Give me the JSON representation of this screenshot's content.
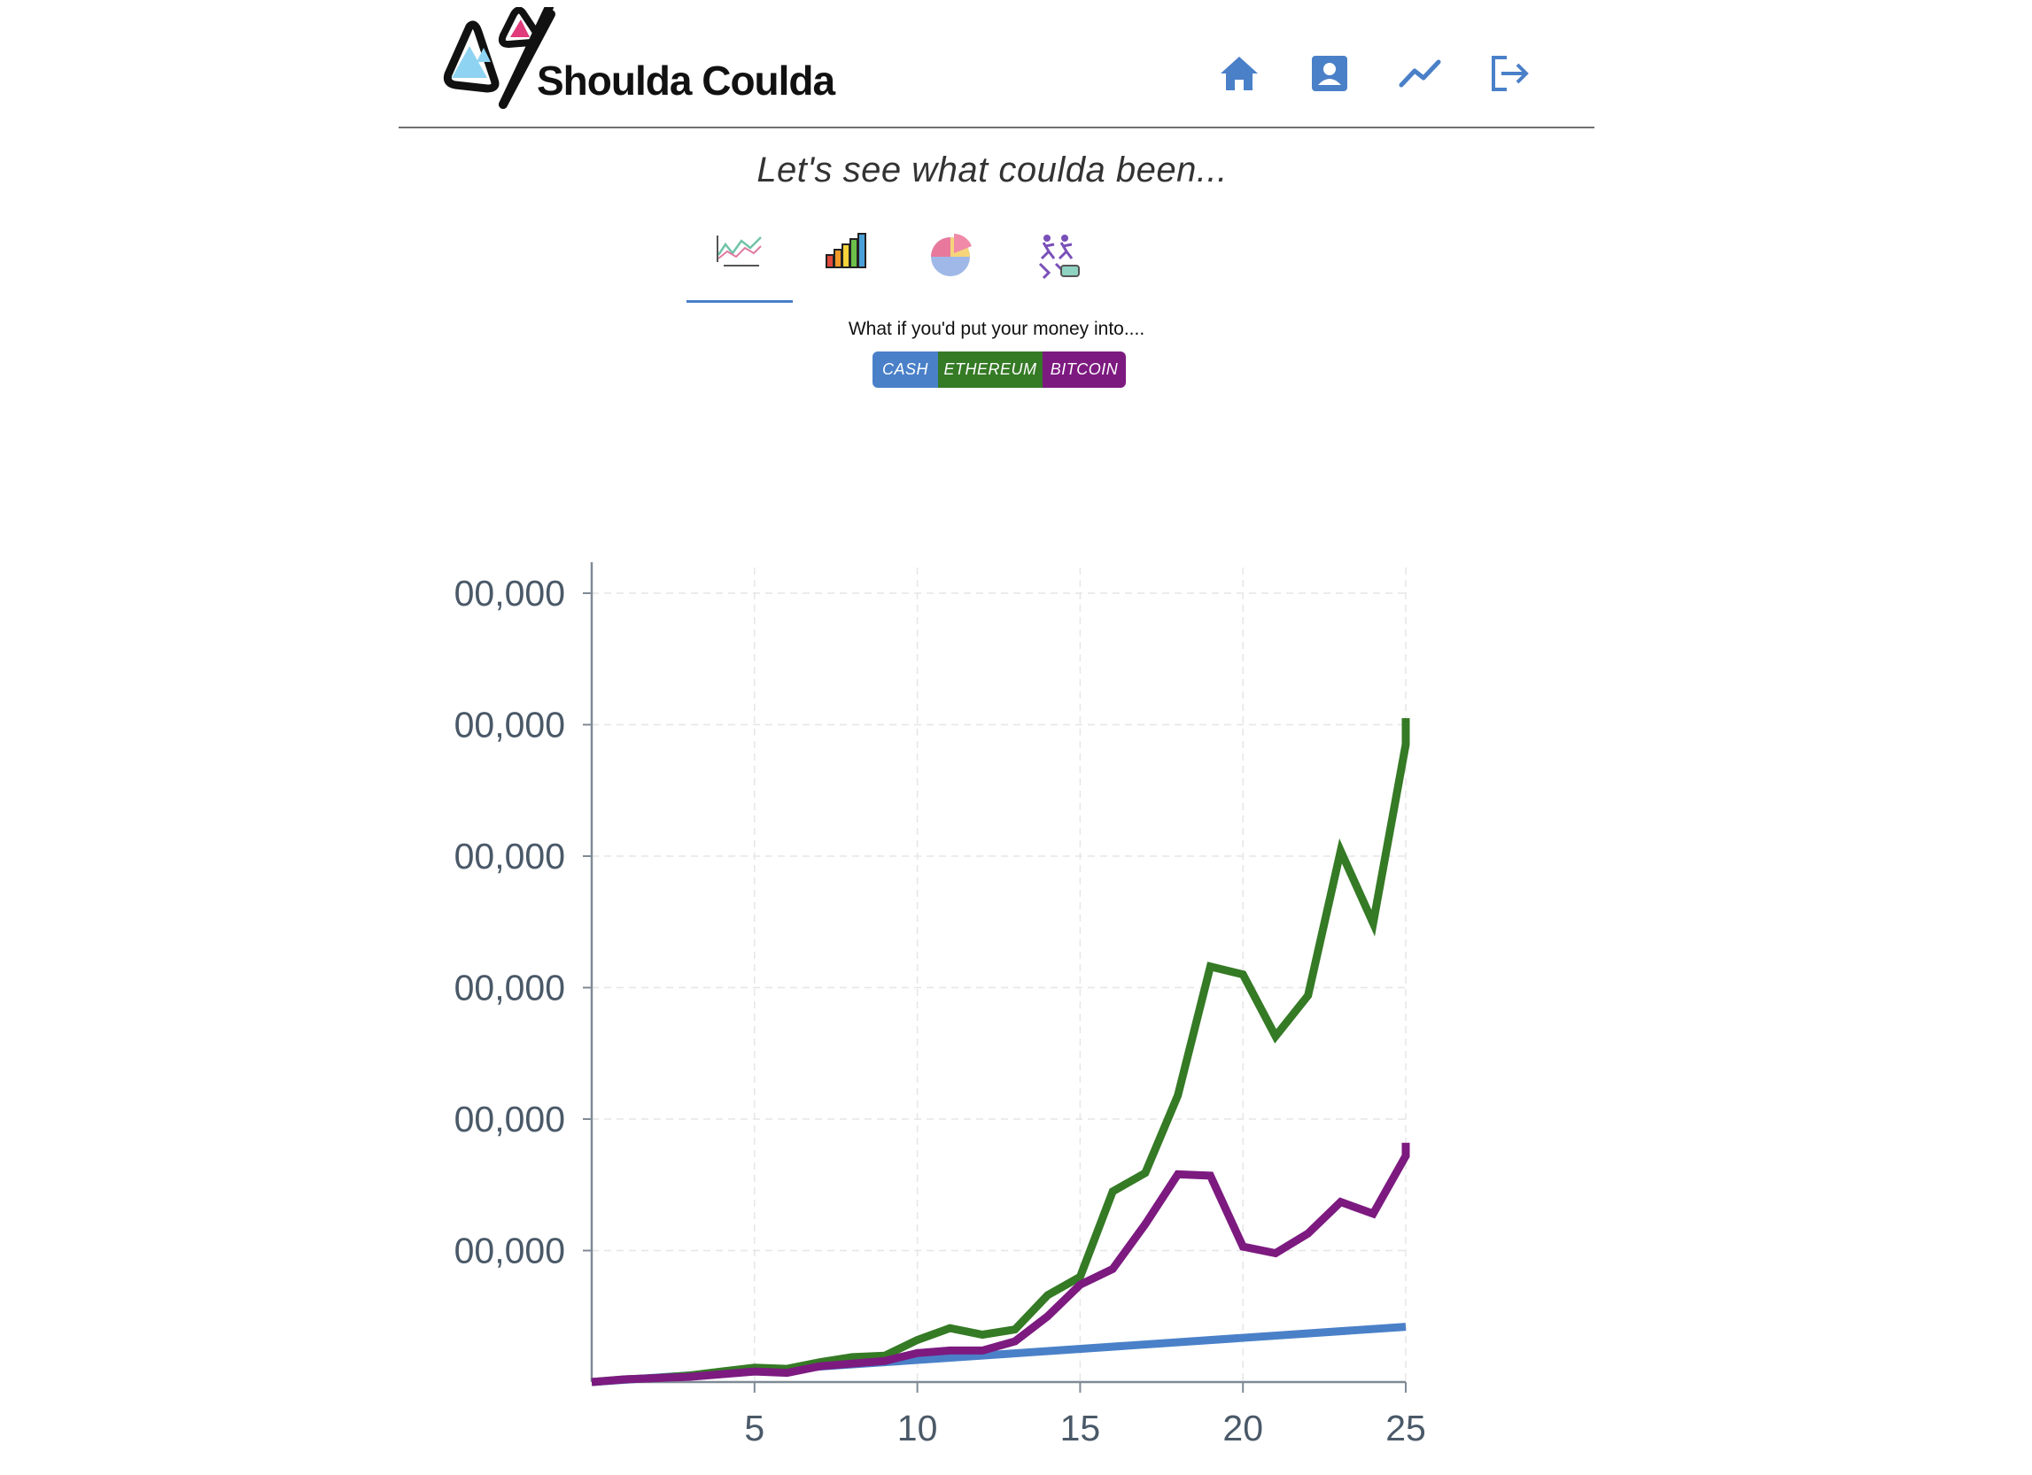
{
  "header": {
    "logo_text": "Shoulda Coulda",
    "nav": [
      {
        "name": "home-icon"
      },
      {
        "name": "profile-icon"
      },
      {
        "name": "chart-icon"
      },
      {
        "name": "logout-icon"
      }
    ]
  },
  "tagline": "Let's see what coulda been...",
  "tabs": [
    {
      "icon": "line-chart-icon",
      "active": true
    },
    {
      "icon": "bar-chart-icon",
      "active": false
    },
    {
      "icon": "pie-chart-icon",
      "active": false
    },
    {
      "icon": "runners-icon",
      "active": false
    }
  ],
  "question": "What if you'd put your money into....",
  "asset_buttons": [
    {
      "label": "CASH",
      "color": "#4a80c8"
    },
    {
      "label": "ETHEREUM",
      "color": "#357a25"
    },
    {
      "label": "BITCOIN",
      "color": "#7c1a80"
    }
  ],
  "chart_data": {
    "type": "line",
    "ytick_labels": [
      "00,000",
      "00,000",
      "00,000",
      "00,000",
      "00,000",
      "00,000"
    ],
    "xtick_labels": [
      "5",
      "10",
      "15",
      "20",
      "25"
    ],
    "xlim": [
      0,
      25
    ],
    "ylim": [
      0,
      6.2
    ],
    "grid": true,
    "series": [
      {
        "key": "cash",
        "color": "#4a80c8",
        "x": [
          0,
          25
        ],
        "y": [
          0,
          0.42
        ]
      },
      {
        "key": "ethereum",
        "color": "#357a25",
        "x": [
          0,
          1,
          2,
          3,
          4,
          5,
          6,
          7,
          8,
          9,
          10,
          11,
          12,
          13,
          14,
          15,
          16,
          17,
          18,
          19,
          20,
          21,
          22,
          23,
          24,
          25,
          25
        ],
        "y": [
          0,
          0.02,
          0.03,
          0.05,
          0.08,
          0.11,
          0.1,
          0.15,
          0.19,
          0.2,
          0.32,
          0.41,
          0.36,
          0.4,
          0.66,
          0.8,
          1.45,
          1.59,
          2.18,
          3.16,
          3.1,
          2.63,
          2.94,
          4.04,
          3.49,
          4.85,
          5.05
        ]
      },
      {
        "key": "bitcoin",
        "color": "#7c1a80",
        "x": [
          0,
          1,
          2,
          3,
          4,
          5,
          6,
          7,
          8,
          9,
          10,
          11,
          12,
          13,
          14,
          15,
          16,
          17,
          18,
          19,
          20,
          21,
          22,
          23,
          24,
          25,
          25
        ],
        "y": [
          0,
          0.02,
          0.03,
          0.04,
          0.06,
          0.08,
          0.07,
          0.12,
          0.14,
          0.16,
          0.22,
          0.24,
          0.24,
          0.31,
          0.5,
          0.74,
          0.86,
          1.2,
          1.58,
          1.57,
          1.03,
          0.98,
          1.13,
          1.37,
          1.28,
          1.72,
          1.82
        ]
      }
    ]
  }
}
